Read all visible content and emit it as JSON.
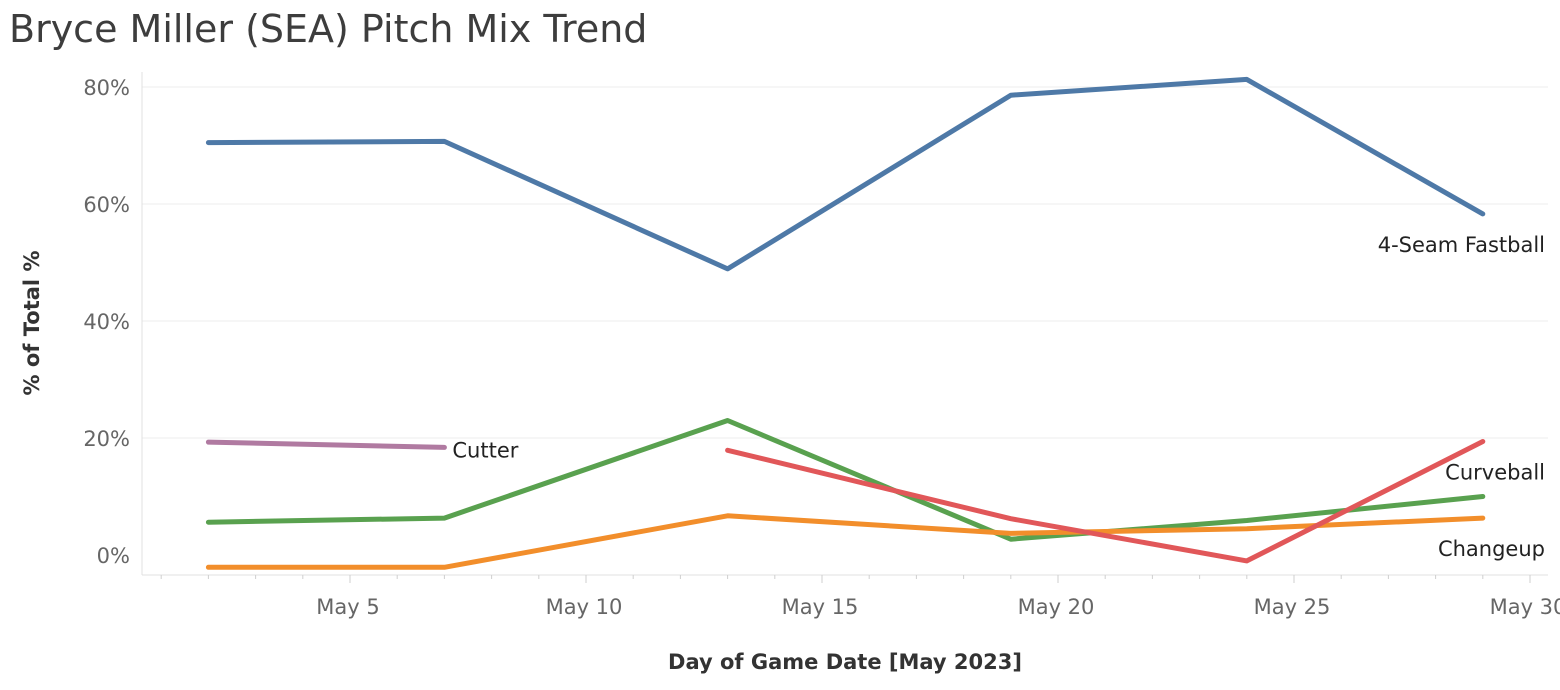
{
  "chart_data": {
    "type": "line",
    "title": "Bryce Miller (SEA) Pitch Mix Trend",
    "xlabel": "Day of Game Date [May 2023]",
    "ylabel": "% of Total %",
    "x_tick_labels": [
      "May 5",
      "May 10",
      "May 15",
      "May 20",
      "May 25",
      "May 30"
    ],
    "x_ticks": [
      5,
      10,
      15,
      20,
      25,
      30
    ],
    "y_tick_labels": [
      "0%",
      "20%",
      "40%",
      "60%",
      "80%"
    ],
    "y_ticks": [
      0,
      20,
      40,
      60,
      80
    ],
    "xlim": [
      0.5,
      30.5
    ],
    "ylim": [
      -3.5,
      86
    ],
    "grid": true,
    "legend": "inline labels",
    "series": [
      {
        "name": "4-Seam Fastball",
        "color": "#4e79a7",
        "label_position": "below-end",
        "points": [
          [
            2,
            70.5
          ],
          [
            7,
            70.7
          ],
          [
            13,
            48.9
          ],
          [
            19,
            78.6
          ],
          [
            24,
            81.3
          ],
          [
            29,
            58.3
          ]
        ]
      },
      {
        "name": "Curveball",
        "color": "#59a14f",
        "label_position": "above-end",
        "points": [
          [
            2,
            5.6
          ],
          [
            7,
            6.3
          ],
          [
            13,
            23.0
          ],
          [
            19,
            2.7
          ],
          [
            24,
            5.9
          ],
          [
            29,
            10.0
          ]
        ]
      },
      {
        "name": "Changeup",
        "color": "#f28e2b",
        "label_position": "below-end",
        "points": [
          [
            2,
            -2.1
          ],
          [
            7,
            -2.1
          ],
          [
            13,
            6.7
          ],
          [
            19,
            3.7
          ],
          [
            24,
            4.5
          ],
          [
            29,
            6.3
          ]
        ]
      },
      {
        "name": "",
        "color": "#e15759",
        "label_position": "none",
        "points": [
          [
            13,
            17.9
          ],
          [
            19,
            6.2
          ],
          [
            24,
            -1.0
          ],
          [
            29,
            19.4
          ]
        ]
      },
      {
        "name": "Cutter",
        "color": "#b07aa1",
        "label_position": "right-end",
        "points": [
          [
            2,
            19.3
          ],
          [
            7,
            18.4
          ]
        ]
      }
    ]
  }
}
